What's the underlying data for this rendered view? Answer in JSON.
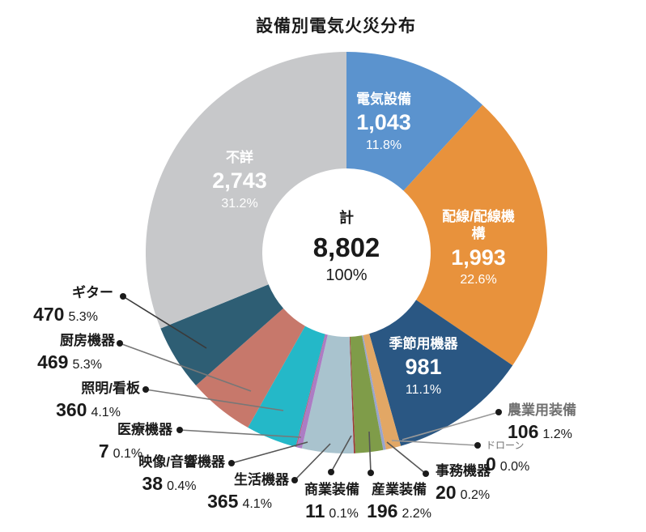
{
  "chart_data": {
    "type": "pie",
    "subtype": "donut",
    "title": "設備別電気火災分布",
    "legend_position": "none",
    "total_label": "計",
    "total_value": "8,802",
    "total_pct": "100%",
    "segments": [
      {
        "id": "electric",
        "name": "電気設備",
        "value": 1043,
        "value_label": "1,043",
        "pct": 11.8,
        "pct_label": "11.8%",
        "color": "#5B93CE"
      },
      {
        "id": "wiring",
        "name": "配線/配線機構",
        "value": 1993,
        "value_label": "1,993",
        "pct": 22.6,
        "pct_label": "22.6%",
        "color": "#E8923C"
      },
      {
        "id": "seasonal",
        "name": "季節用機器",
        "value": 981,
        "value_label": "981",
        "pct": 11.1,
        "pct_label": "11.1%",
        "color": "#2A5783"
      },
      {
        "id": "agriculture",
        "name": "農業用装備",
        "value": 106,
        "value_label": "106",
        "pct": 1.2,
        "pct_label": "1.2%",
        "color": "#E2A765"
      },
      {
        "id": "drone",
        "name": "ドローン",
        "value": 0,
        "value_label": "0",
        "pct": 0.0,
        "pct_label": "0.0%",
        "color": "#CCCCCC"
      },
      {
        "id": "office",
        "name": "事務機器",
        "value": 20,
        "value_label": "20",
        "pct": 0.2,
        "pct_label": "0.2%",
        "color": "#98A4CD"
      },
      {
        "id": "industrial",
        "name": "産業装備",
        "value": 196,
        "value_label": "196",
        "pct": 2.2,
        "pct_label": "2.2%",
        "color": "#7F9C49"
      },
      {
        "id": "commercial",
        "name": "商業装備",
        "value": 11,
        "value_label": "11",
        "pct": 0.1,
        "pct_label": "0.1%",
        "color": "#9E3B38"
      },
      {
        "id": "household",
        "name": "生活機器",
        "value": 365,
        "value_label": "365",
        "pct": 4.1,
        "pct_label": "4.1%",
        "color": "#A9C3CE"
      },
      {
        "id": "av",
        "name": "映像/音響機器",
        "value": 38,
        "value_label": "38",
        "pct": 0.4,
        "pct_label": "0.4%",
        "color": "#AC7CC4"
      },
      {
        "id": "medical",
        "name": "医療機器",
        "value": 7,
        "value_label": "7",
        "pct": 0.1,
        "pct_label": "0.1%",
        "color": "#B05A7A"
      },
      {
        "id": "lighting",
        "name": "照明/看板",
        "value": 360,
        "value_label": "360",
        "pct": 4.1,
        "pct_label": "4.1%",
        "color": "#24B8C8"
      },
      {
        "id": "kitchen",
        "name": "厨房機器",
        "value": 469,
        "value_label": "469",
        "pct": 5.3,
        "pct_label": "5.3%",
        "color": "#C7786B"
      },
      {
        "id": "guitar",
        "name": "ギター",
        "value": 470,
        "value_label": "470",
        "pct": 5.3,
        "pct_label": "5.3%",
        "color": "#2E5E74"
      },
      {
        "id": "unknown",
        "name": "不詳",
        "value": 2743,
        "value_label": "2,743",
        "pct": 31.2,
        "pct_label": "31.2%",
        "color": "#C7C8CA"
      }
    ]
  }
}
